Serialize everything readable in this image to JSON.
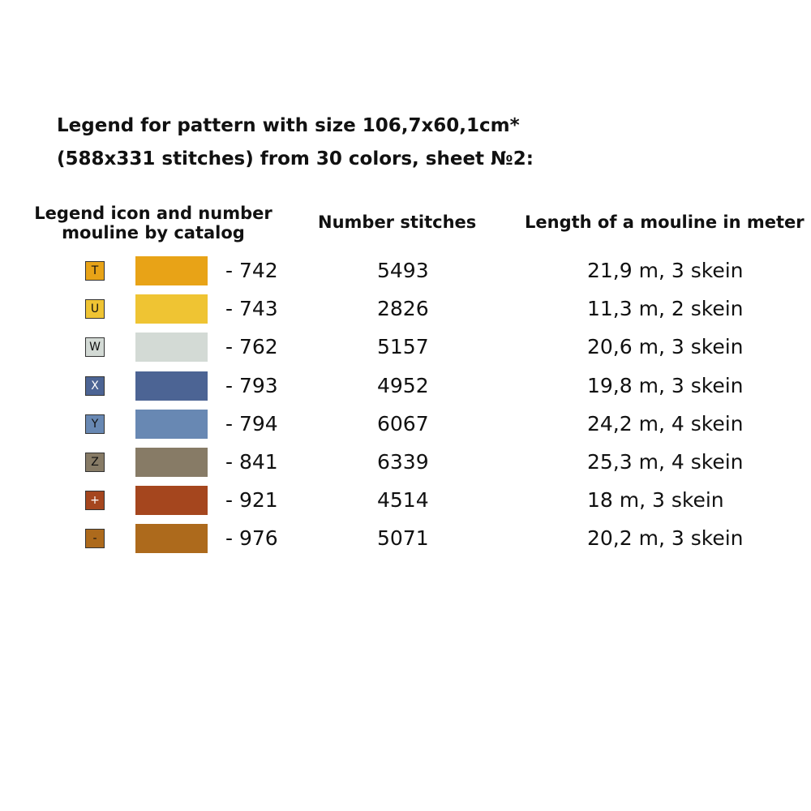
{
  "title": {
    "line1": "Legend for pattern with size 106,7x60,1cm*",
    "line2": "(588x331 stitches) from 30 colors, sheet №2:"
  },
  "headers": {
    "icon_line1": "Legend icon and number",
    "icon_line2": "mouline by catalog",
    "stitches": "Number stitches",
    "length": "Length of a mouline in meter"
  },
  "rows": [
    {
      "symbol": "T",
      "symbol_bg": "#e8a317",
      "symbol_fg": "#111111",
      "swatch": "#e8a317",
      "code": "- 742",
      "stitches": "5493",
      "length": "21,9 m, 3 skein"
    },
    {
      "symbol": "U",
      "symbol_bg": "#efc433",
      "symbol_fg": "#111111",
      "swatch": "#efc433",
      "code": "- 743",
      "stitches": "2826",
      "length": "11,3 m, 2 skein"
    },
    {
      "symbol": "W",
      "symbol_bg": "#d3dad5",
      "symbol_fg": "#111111",
      "swatch": "#d3dad5",
      "code": "- 762",
      "stitches": "5157",
      "length": "20,6 m, 3 skein"
    },
    {
      "symbol": "X",
      "symbol_bg": "#4c6494",
      "symbol_fg": "#ffffff",
      "swatch": "#4c6494",
      "code": "- 793",
      "stitches": "4952",
      "length": "19,8 m, 3 skein"
    },
    {
      "symbol": "Y",
      "symbol_bg": "#6888b3",
      "symbol_fg": "#111111",
      "swatch": "#6888b3",
      "code": "- 794",
      "stitches": "6067",
      "length": "24,2 m, 4 skein"
    },
    {
      "symbol": "Z",
      "symbol_bg": "#877b66",
      "symbol_fg": "#111111",
      "swatch": "#877b66",
      "code": "- 841",
      "stitches": "6339",
      "length": "25,3 m, 4 skein"
    },
    {
      "symbol": "+",
      "symbol_bg": "#a5461e",
      "symbol_fg": "#ffffff",
      "swatch": "#a5461e",
      "code": "- 921",
      "stitches": "4514",
      "length": "18 m, 3 skein"
    },
    {
      "symbol": "-",
      "symbol_bg": "#ad6a1c",
      "symbol_fg": "#111111",
      "swatch": "#ad6a1c",
      "code": "- 976",
      "stitches": "5071",
      "length": "20,2 m, 3 skein"
    }
  ]
}
